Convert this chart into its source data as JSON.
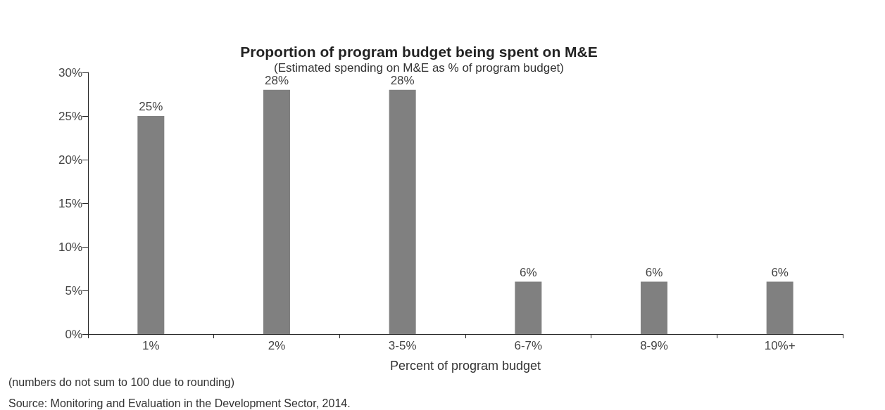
{
  "chart_data": {
    "type": "bar",
    "title": "Proportion of program budget being spent on M&E",
    "subtitle": "(Estimated spending on M&E as % of program budget)",
    "xlabel": "Percent of program budget",
    "categories": [
      "1%",
      "2%",
      "3-5%",
      "6-7%",
      "8-9%",
      "10%+"
    ],
    "values": [
      25,
      28,
      28,
      6,
      6,
      6
    ],
    "color": "#808080",
    "value_labels": [
      "25%",
      "28%",
      "28%",
      "6%",
      "6%",
      "6%"
    ],
    "ylim": [
      0,
      30
    ],
    "yticks": [
      {
        "value": 0,
        "label": "0%"
      },
      {
        "value": 5,
        "label": "5%"
      },
      {
        "value": 10,
        "label": "10%"
      },
      {
        "value": 15,
        "label": "15%"
      },
      {
        "value": 20,
        "label": "20%"
      },
      {
        "value": 25,
        "label": "25%"
      },
      {
        "value": 30,
        "label": "30%"
      }
    ],
    "grid": false,
    "annotations": [
      "(numbers do not sum to 100 due to rounding)",
      "Source: Monitoring and Evaluation in the Development Sector, 2014."
    ]
  }
}
